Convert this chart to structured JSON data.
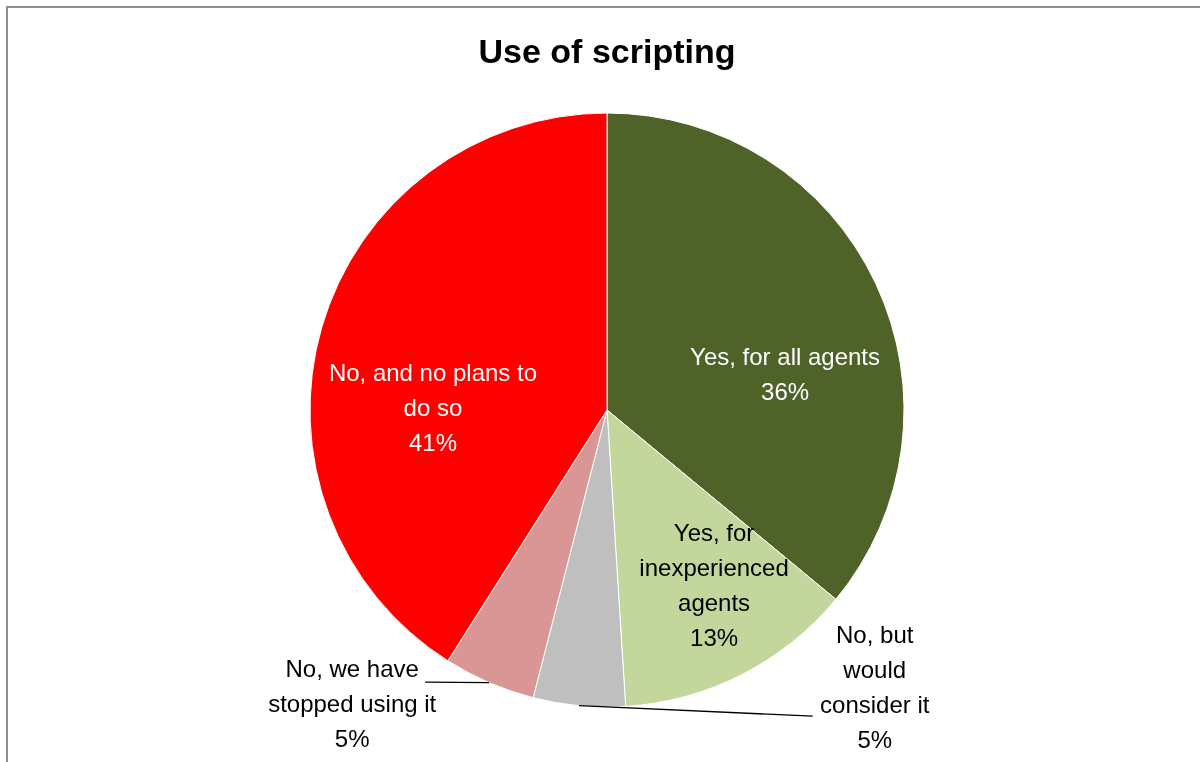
{
  "chart_data": {
    "type": "pie",
    "title": "Use of scripting",
    "categories": [
      "Yes, for all agents",
      "Yes, for inexperienced agents",
      "No, but would consider it",
      "No, we have stopped using it",
      "No, and no plans to do so"
    ],
    "values": [
      36,
      13,
      5,
      5,
      41
    ],
    "colors": [
      "#4f6228",
      "#c3d69b",
      "#bfbfbf",
      "#d99694",
      "#ff0000"
    ],
    "value_labels": [
      "36%",
      "13%",
      "5%",
      "5%",
      "41%"
    ]
  }
}
